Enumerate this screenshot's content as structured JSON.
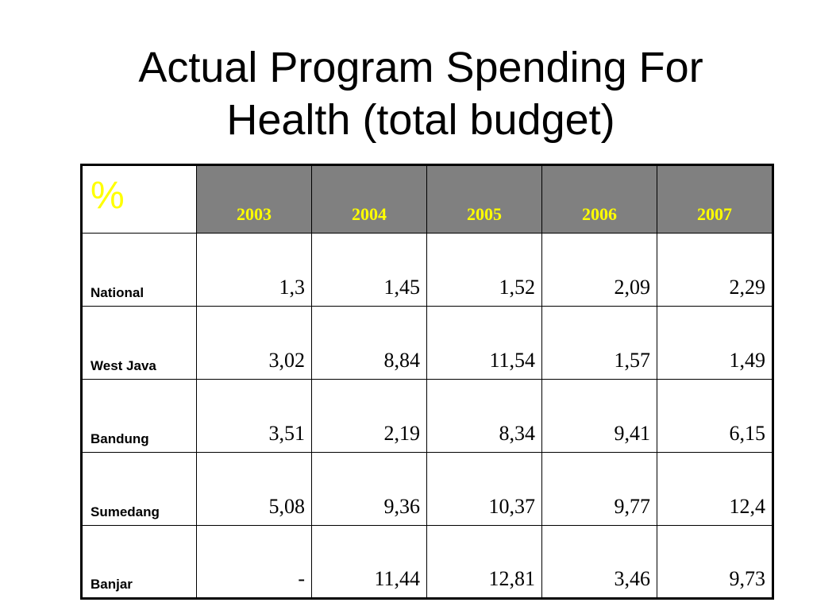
{
  "title": {
    "line1": "Actual Program Spending For",
    "line2": "Health (total budget)"
  },
  "table": {
    "corner_label": "%",
    "years": [
      "2003",
      "2004",
      "2005",
      "2006",
      "2007"
    ],
    "rows": [
      {
        "region": "National",
        "values": [
          "1,3",
          "1,45",
          "1,52",
          "2,09",
          "2,29"
        ]
      },
      {
        "region": "West Java",
        "values": [
          "3,02",
          "8,84",
          "11,54",
          "1,57",
          "1,49"
        ]
      },
      {
        "region": "Bandung",
        "values": [
          "3,51",
          "2,19",
          "8,34",
          "9,41",
          "6,15"
        ]
      },
      {
        "region": "Sumedang",
        "values": [
          "5,08",
          "9,36",
          "10,37",
          "9,77",
          "12,4"
        ]
      },
      {
        "region": "Banjar",
        "values": [
          "-",
          "11,44",
          "12,81",
          "3,46",
          "9,73"
        ]
      }
    ]
  },
  "colors": {
    "header_bg": "#808080",
    "header_text": "#ffff00",
    "corner_text": "#ffff00"
  },
  "chart_data": {
    "type": "table",
    "title": "Actual Program Spending For Health (total budget)",
    "columns": [
      "2003",
      "2004",
      "2005",
      "2006",
      "2007"
    ],
    "rows": [
      {
        "name": "National",
        "values": [
          1.3,
          1.45,
          1.52,
          2.09,
          2.29
        ]
      },
      {
        "name": "West Java",
        "values": [
          3.02,
          8.84,
          11.54,
          1.57,
          1.49
        ]
      },
      {
        "name": "Bandung",
        "values": [
          3.51,
          2.19,
          8.34,
          9.41,
          6.15
        ]
      },
      {
        "name": "Sumedang",
        "values": [
          5.08,
          9.36,
          10.37,
          9.77,
          12.4
        ]
      },
      {
        "name": "Banjar",
        "values": [
          null,
          11.44,
          12.81,
          3.46,
          9.73
        ]
      }
    ]
  }
}
